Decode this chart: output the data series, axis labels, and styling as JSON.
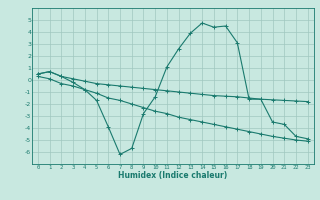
{
  "x": [
    0,
    1,
    2,
    3,
    4,
    5,
    6,
    7,
    8,
    9,
    10,
    11,
    12,
    13,
    14,
    15,
    16,
    17,
    18,
    19,
    20,
    21,
    22,
    23
  ],
  "line1": [
    0.5,
    0.7,
    0.3,
    -0.2,
    -0.8,
    -1.7,
    -3.9,
    -6.2,
    -5.7,
    -2.8,
    -1.4,
    1.1,
    2.6,
    3.9,
    4.75,
    4.4,
    4.5,
    3.1,
    -1.6,
    -1.6,
    -3.5,
    -3.7,
    -4.7,
    -4.9
  ],
  "line2": [
    0.5,
    0.7,
    0.3,
    0.1,
    -0.1,
    -0.3,
    -0.4,
    -0.5,
    -0.6,
    -0.7,
    -0.8,
    -0.9,
    -1.0,
    -1.1,
    -1.2,
    -1.3,
    -1.35,
    -1.4,
    -1.5,
    -1.6,
    -1.65,
    -1.7,
    -1.75,
    -1.8
  ],
  "line3": [
    0.3,
    0.1,
    -0.3,
    -0.5,
    -0.8,
    -1.1,
    -1.5,
    -1.7,
    -2.0,
    -2.3,
    -2.6,
    -2.8,
    -3.1,
    -3.3,
    -3.5,
    -3.7,
    -3.9,
    -4.1,
    -4.3,
    -4.5,
    -4.7,
    -4.85,
    -5.0,
    -5.1
  ],
  "line_color": "#1a7a6e",
  "bg_color": "#c8e8e0",
  "grid_color": "#a0c8c0",
  "xlabel": "Humidex (Indice chaleur)",
  "ylim": [
    -7,
    6
  ],
  "xlim": [
    -0.5,
    23.5
  ],
  "yticks": [
    -6,
    -5,
    -4,
    -3,
    -2,
    -1,
    0,
    1,
    2,
    3,
    4,
    5
  ],
  "xticks": [
    0,
    1,
    2,
    3,
    4,
    5,
    6,
    7,
    8,
    9,
    10,
    11,
    12,
    13,
    14,
    15,
    16,
    17,
    18,
    19,
    20,
    21,
    22,
    23
  ]
}
